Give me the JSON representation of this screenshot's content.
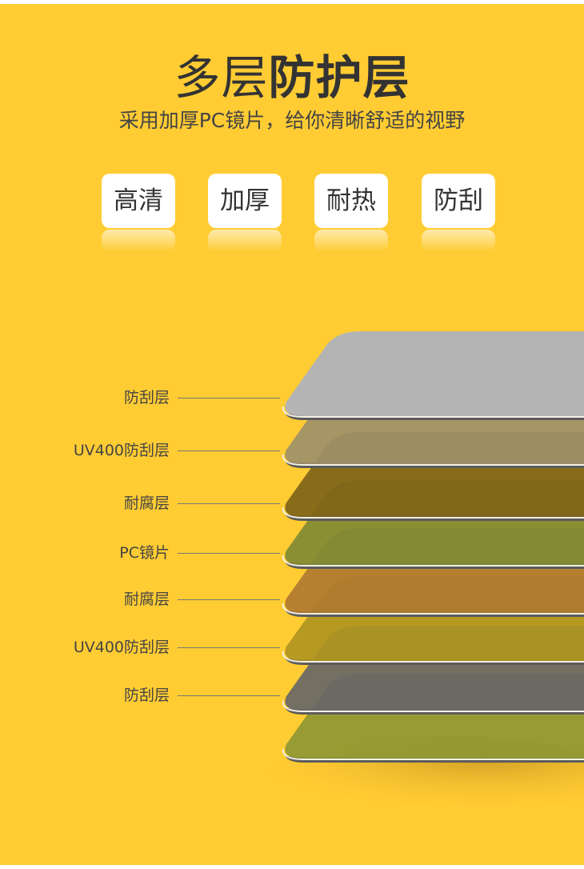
{
  "header": {
    "title_light": "多层",
    "title_bold": "防护层",
    "subtitle": "采用加厚PC镜片，给你清晰舒适的视野"
  },
  "badges": [
    "高清",
    "加厚",
    "耐热",
    "防刮"
  ],
  "layers": {
    "labels": [
      "防刮层",
      "UV400防刮层",
      "耐腐层",
      "PC镜片",
      "耐腐层",
      "UV400防刮层",
      "防刮层"
    ],
    "colors": [
      "#b4b4b4",
      "#9e9069",
      "#7f6418",
      "#808a34",
      "#b07a30",
      "#b0951f",
      "#676767",
      "#8f9733"
    ]
  },
  "colors": {
    "background": "#ffcc33",
    "badge": "#ffffff",
    "text": "#333333"
  }
}
